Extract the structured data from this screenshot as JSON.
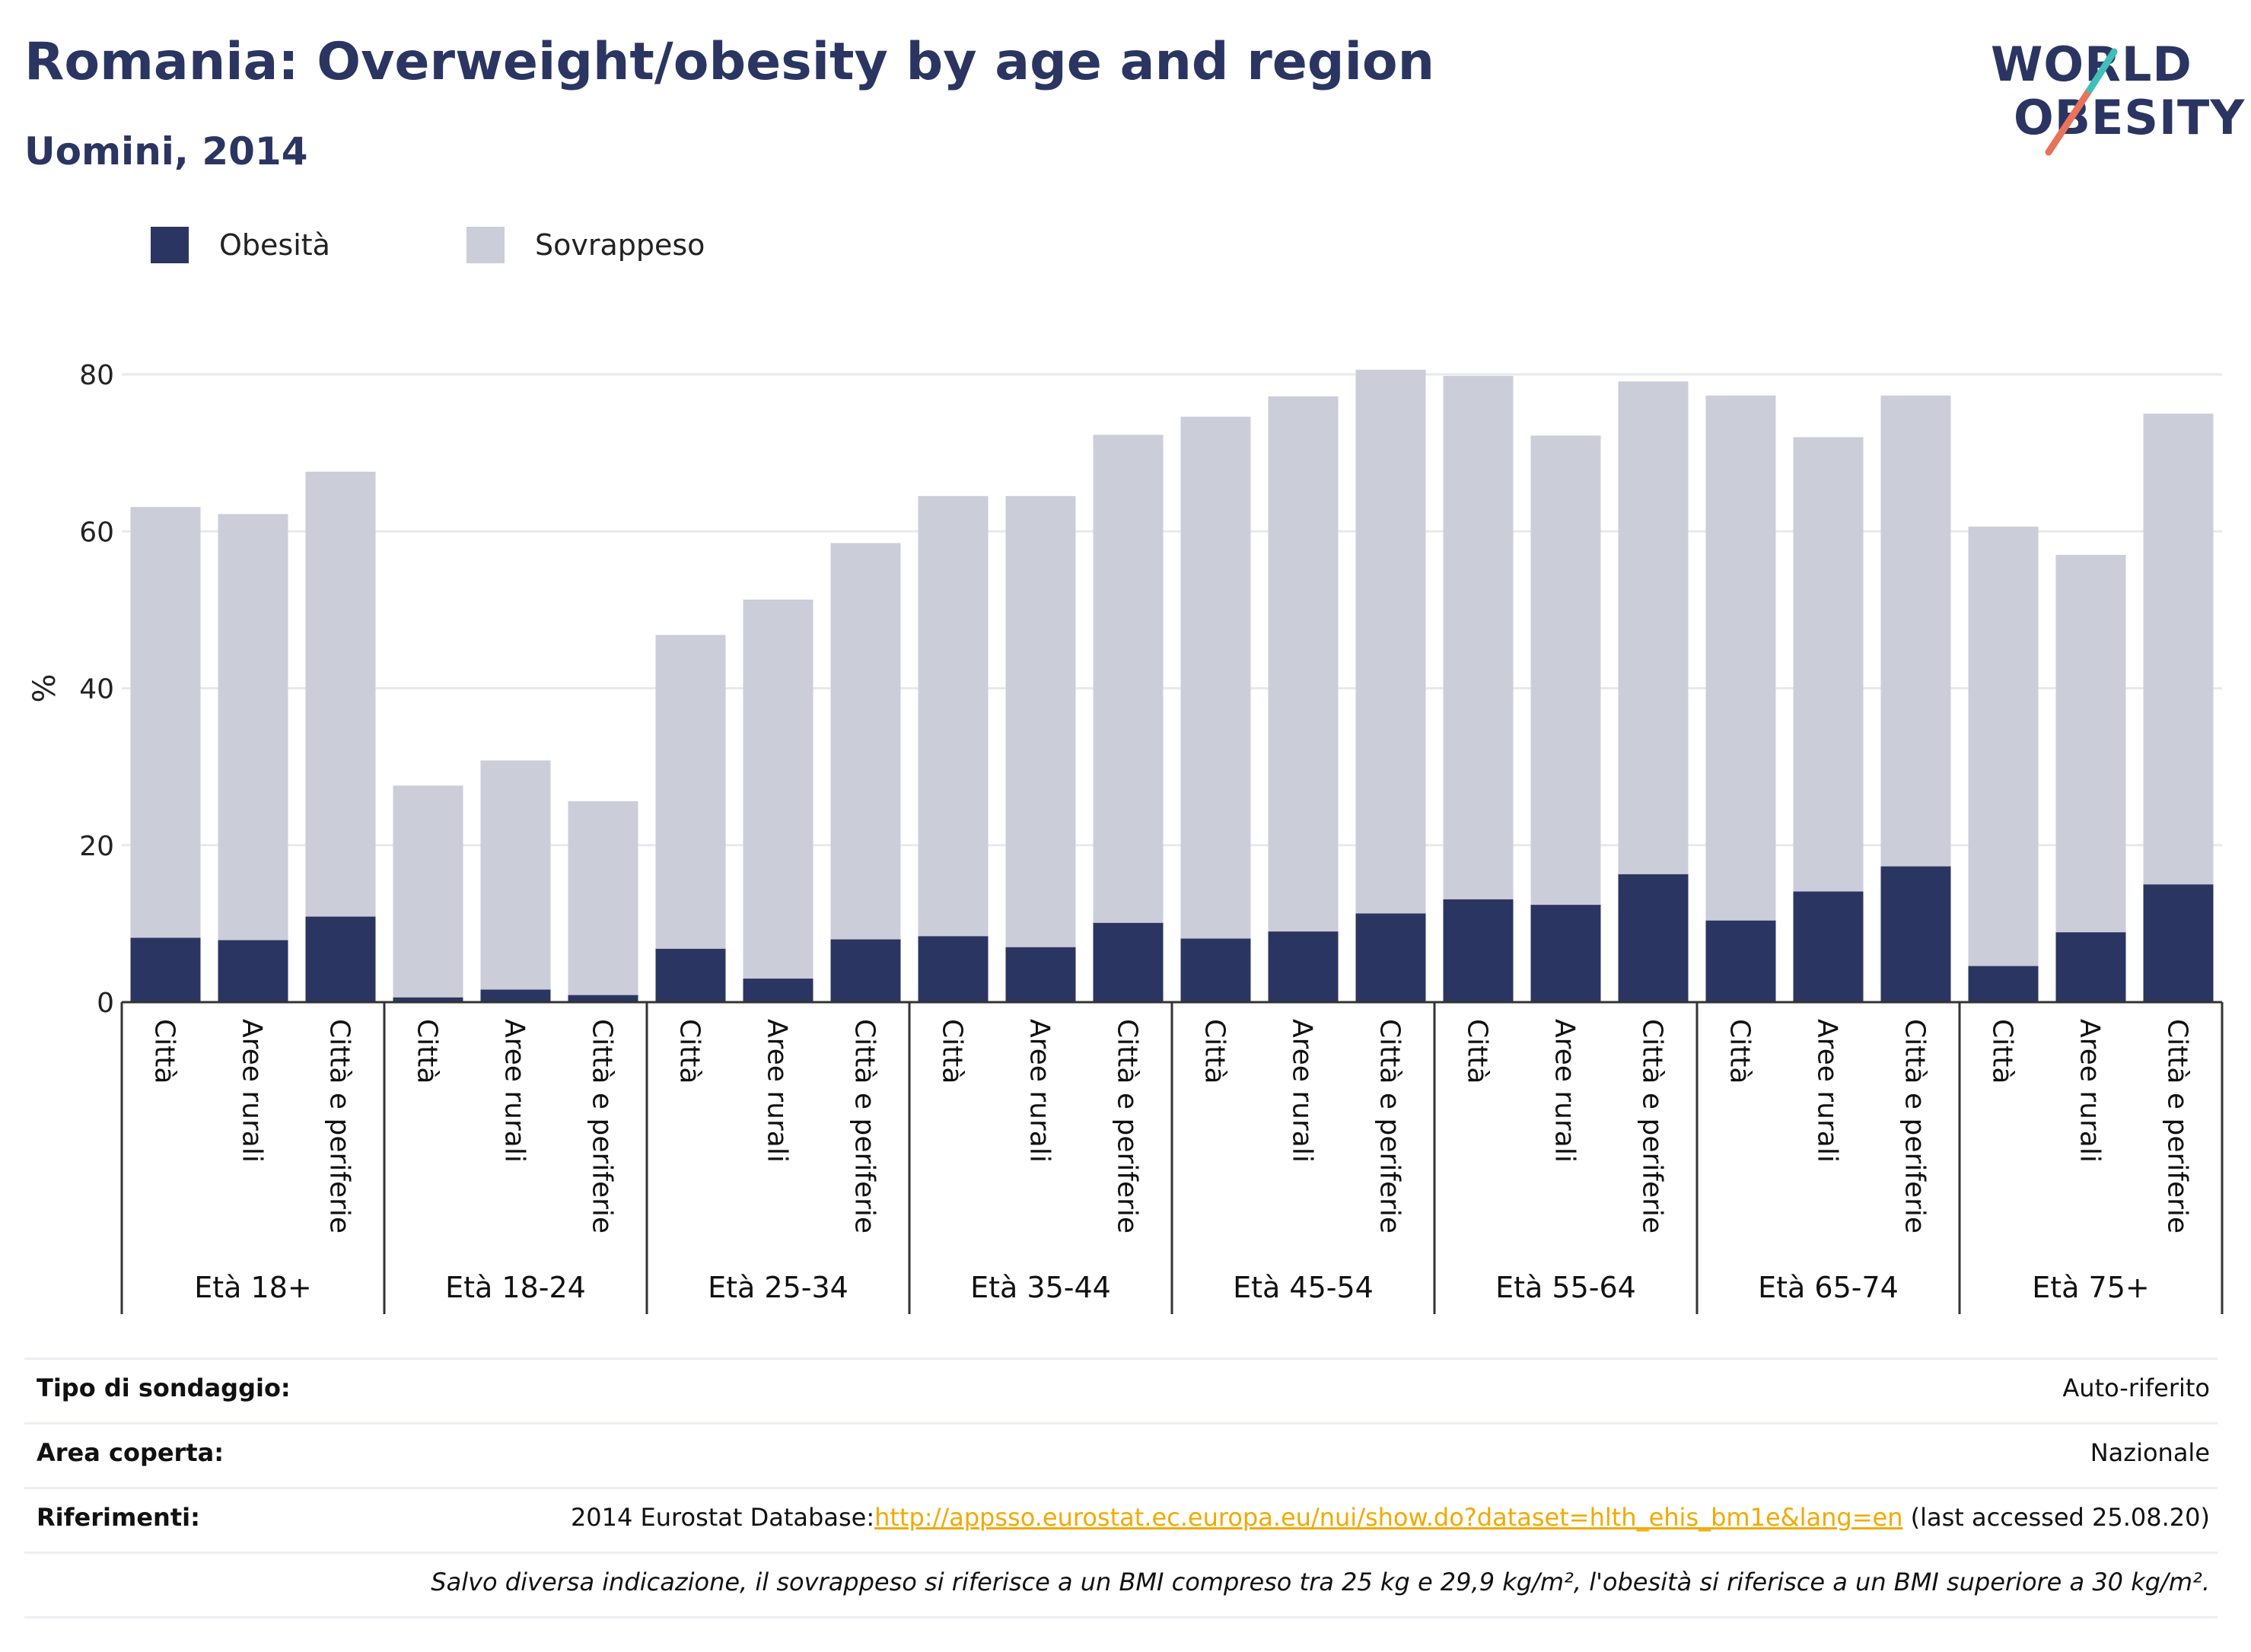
{
  "header": {
    "title": "Romania: Overweight/obesity by age and region",
    "subtitle": "Uomini, 2014"
  },
  "logo": {
    "line1": "WORLD",
    "line2": "OBESITY",
    "text_color": "#2b3561",
    "accent_colors": [
      "#3fbfb8",
      "#e8735a"
    ]
  },
  "legend": [
    {
      "name": "Obesità",
      "color": "#2b3561"
    },
    {
      "name": "Sovrappeso",
      "color": "#cbcdd9"
    }
  ],
  "chart_data": {
    "type": "bar",
    "stacked": false,
    "ylabel": "%",
    "ylim": [
      0,
      80
    ],
    "yticks": [
      0,
      20,
      40,
      60,
      80
    ],
    "grid": true,
    "legend_position": "top-left",
    "groups": [
      {
        "label": "Età 18+",
        "categories": [
          "Città",
          "Aree rurali",
          "Città e periferie"
        ],
        "overweight": [
          63.1,
          62.2,
          67.6
        ],
        "obesity": [
          8.2,
          7.9,
          10.9
        ]
      },
      {
        "label": "Età 18-24",
        "categories": [
          "Città",
          "Aree rurali",
          "Città e periferie"
        ],
        "overweight": [
          27.6,
          30.8,
          25.6
        ],
        "obesity": [
          0.6,
          1.6,
          0.9
        ]
      },
      {
        "label": "Età 25-34",
        "categories": [
          "Città",
          "Aree rurali",
          "Città e periferie"
        ],
        "overweight": [
          46.8,
          51.3,
          58.5
        ],
        "obesity": [
          6.8,
          3.0,
          8.0
        ]
      },
      {
        "label": "Età 35-44",
        "categories": [
          "Città",
          "Aree rurali",
          "Città e periferie"
        ],
        "overweight": [
          64.5,
          64.5,
          72.3
        ],
        "obesity": [
          8.4,
          7.0,
          10.1
        ]
      },
      {
        "label": "Età 45-54",
        "categories": [
          "Città",
          "Aree rurali",
          "Città e periferie"
        ],
        "overweight": [
          74.6,
          77.2,
          80.6
        ],
        "obesity": [
          8.1,
          9.0,
          11.3
        ]
      },
      {
        "label": "Età 55-64",
        "categories": [
          "Città",
          "Aree rurali",
          "Città e periferie"
        ],
        "overweight": [
          79.8,
          72.2,
          79.1
        ],
        "obesity": [
          13.1,
          12.4,
          16.3
        ]
      },
      {
        "label": "Età 65-74",
        "categories": [
          "Città",
          "Aree rurali",
          "Città e periferie"
        ],
        "overweight": [
          77.3,
          72.0,
          77.3
        ],
        "obesity": [
          10.4,
          14.1,
          17.3
        ]
      },
      {
        "label": "Età 75+",
        "categories": [
          "Città",
          "Aree rurali",
          "Città e periferie"
        ],
        "overweight": [
          60.6,
          57.0,
          75.0
        ],
        "obesity": [
          4.6,
          8.9,
          15.0
        ]
      }
    ]
  },
  "footer": {
    "survey_type_label": "Tipo di sondaggio:",
    "survey_type_value": "Auto-riferito",
    "area_label": "Area coperta:",
    "area_value": "Nazionale",
    "references_label": "Riferimenti:",
    "references_prefix": "2014 Eurostat Database:",
    "references_link": "http://appsso.eurostat.ec.europa.eu/nui/show.do?dataset=hlth_ehis_bm1e&lang=en",
    "references_suffix": " (last accessed 25.08.20)",
    "note": "Salvo diversa indicazione, il sovrappeso si riferisce a un BMI compreso tra 25 kg e 29,9 kg/m², l'obesità si riferisce a un BMI superiore a 30 kg/m²."
  }
}
